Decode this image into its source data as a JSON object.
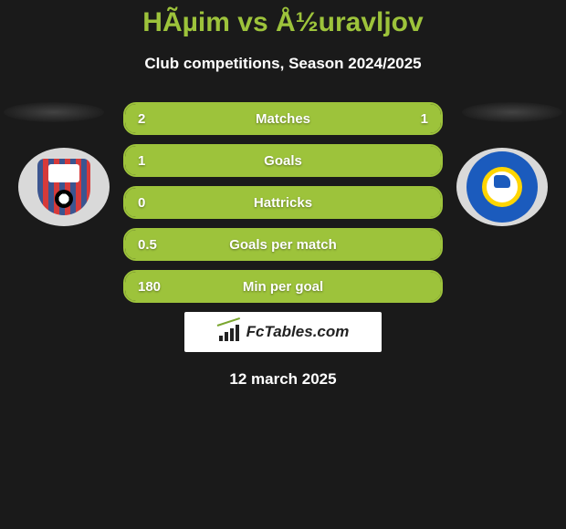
{
  "colors": {
    "accent": "#9dc33b",
    "background": "#1a1a1a",
    "text": "#ffffff",
    "branding_bg": "#ffffff",
    "branding_text": "#222222"
  },
  "header": {
    "title": "HÃµim vs Å½uravljov",
    "subtitle": "Club competitions, Season 2024/2025"
  },
  "stats": [
    {
      "label": "Matches",
      "left_val": "2",
      "right_val": "1",
      "left_pct": 66.7,
      "right_pct": 33.3
    },
    {
      "label": "Goals",
      "left_val": "1",
      "right_val": "",
      "left_pct": 100,
      "right_pct": 0
    },
    {
      "label": "Hattricks",
      "left_val": "0",
      "right_val": "",
      "left_pct": 100,
      "right_pct": 0
    },
    {
      "label": "Goals per match",
      "left_val": "0.5",
      "right_val": "",
      "left_pct": 100,
      "right_pct": 0
    },
    {
      "label": "Min per goal",
      "left_val": "180",
      "right_val": "",
      "left_pct": 100,
      "right_pct": 0
    }
  ],
  "branding": {
    "text": "FcTables.com"
  },
  "date": "12 march 2025",
  "teams": {
    "left_badge_name": "paide-linnameeskond",
    "right_badge_name": "fc-narva-trans"
  }
}
